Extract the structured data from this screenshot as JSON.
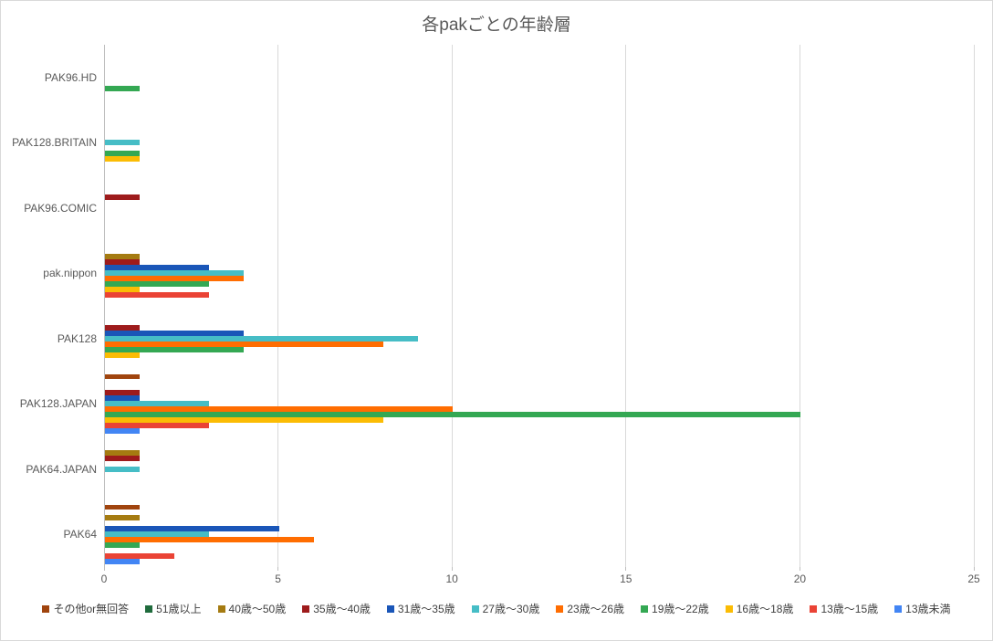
{
  "window": {
    "background": "#FFFFFF",
    "border_color": "#D9D9D9"
  },
  "chart_data": {
    "type": "bar",
    "orientation": "horizontal",
    "title": "各pakごとの年齢層",
    "title_color": "#595959",
    "legend_position": "bottom",
    "grid": true,
    "xlim": [
      0,
      25
    ],
    "xticks": [
      0,
      5,
      10,
      15,
      20,
      25
    ],
    "gridline_color": "#D9D9D9",
    "axis_line_color": "#BFBFBF",
    "axis_text_color": "#595959",
    "categories": [
      "PAK96.HD",
      "PAK128.BRITAIN",
      "PAK96.COMIC",
      "pak.nippon",
      "PAK128",
      "PAK128.JAPAN",
      "PAK64.JAPAN",
      "PAK64"
    ],
    "series": [
      {
        "name": "その他or無回答",
        "color": "#A0440E",
        "values": [
          0,
          0,
          0,
          0,
          0,
          1,
          0,
          1
        ]
      },
      {
        "name": "51歳以上",
        "color": "#1F6B3C",
        "values": [
          0,
          0,
          0,
          0,
          0,
          0,
          0,
          0
        ]
      },
      {
        "name": "40歳〜50歳",
        "color": "#A57B11",
        "values": [
          0,
          0,
          0,
          1,
          0,
          0,
          1,
          1
        ]
      },
      {
        "name": "35歳〜40歳",
        "color": "#9E1B1C",
        "values": [
          0,
          0,
          1,
          1,
          1,
          1,
          1,
          0
        ]
      },
      {
        "name": "31歳〜35歳",
        "color": "#1A56B8",
        "values": [
          0,
          0,
          0,
          3,
          4,
          1,
          0,
          5
        ]
      },
      {
        "name": "27歳〜30歳",
        "color": "#46BDC6",
        "values": [
          0,
          1,
          0,
          4,
          9,
          3,
          1,
          3
        ]
      },
      {
        "name": "23歳〜26歳",
        "color": "#FF6D01",
        "values": [
          0,
          0,
          0,
          4,
          8,
          10,
          0,
          6
        ]
      },
      {
        "name": "19歳〜22歳",
        "color": "#34A853",
        "values": [
          1,
          1,
          0,
          3,
          4,
          20,
          0,
          1
        ]
      },
      {
        "name": "16歳〜18歳",
        "color": "#FBBC04",
        "values": [
          0,
          1,
          0,
          1,
          1,
          8,
          0,
          0
        ]
      },
      {
        "name": "13歳〜15歳",
        "color": "#EA4335",
        "values": [
          0,
          0,
          0,
          3,
          0,
          3,
          0,
          2
        ]
      },
      {
        "name": "13歳未満",
        "color": "#4285F4",
        "values": [
          0,
          0,
          0,
          0,
          0,
          1,
          0,
          1
        ]
      }
    ]
  }
}
